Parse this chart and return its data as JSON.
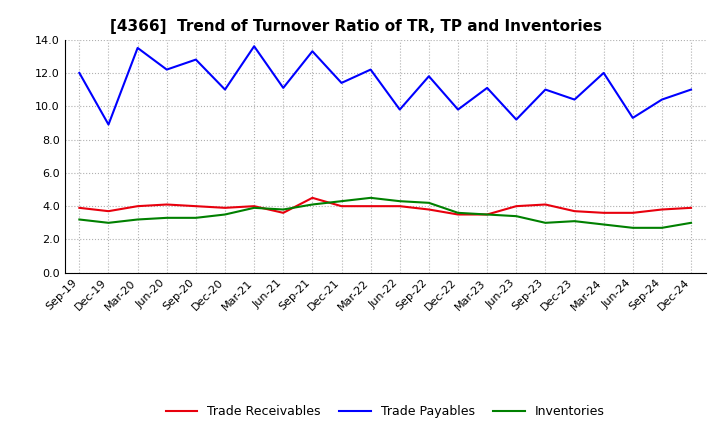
{
  "title": "[4366]  Trend of Turnover Ratio of TR, TP and Inventories",
  "x_labels": [
    "Sep-19",
    "Dec-19",
    "Mar-20",
    "Jun-20",
    "Sep-20",
    "Dec-20",
    "Mar-21",
    "Jun-21",
    "Sep-21",
    "Dec-21",
    "Mar-22",
    "Jun-22",
    "Sep-22",
    "Dec-22",
    "Mar-23",
    "Jun-23",
    "Sep-23",
    "Dec-23",
    "Mar-24",
    "Jun-24",
    "Sep-24",
    "Dec-24"
  ],
  "trade_receivables": [
    3.9,
    3.7,
    4.0,
    4.1,
    4.0,
    3.9,
    4.0,
    3.6,
    4.5,
    4.0,
    4.0,
    4.0,
    3.8,
    3.5,
    3.5,
    4.0,
    4.1,
    3.7,
    3.6,
    3.6,
    3.8,
    3.9
  ],
  "trade_payables": [
    12.0,
    8.9,
    13.5,
    12.2,
    12.8,
    11.0,
    13.6,
    11.1,
    13.3,
    11.4,
    12.2,
    9.8,
    11.8,
    9.8,
    11.1,
    9.2,
    11.0,
    10.4,
    12.0,
    9.3,
    10.4,
    11.0
  ],
  "inventories": [
    3.2,
    3.0,
    3.2,
    3.3,
    3.3,
    3.5,
    3.9,
    3.8,
    4.1,
    4.3,
    4.5,
    4.3,
    4.2,
    3.6,
    3.5,
    3.4,
    3.0,
    3.1,
    2.9,
    2.7,
    2.7,
    3.0
  ],
  "ylim": [
    0.0,
    14.0
  ],
  "yticks": [
    0.0,
    2.0,
    4.0,
    6.0,
    8.0,
    10.0,
    12.0,
    14.0
  ],
  "color_tr": "#e8000d",
  "color_tp": "#0000ff",
  "color_inv": "#008000",
  "bg_color": "#ffffff",
  "grid_color": "#b0b0b0",
  "legend_labels": [
    "Trade Receivables",
    "Trade Payables",
    "Inventories"
  ],
  "title_fontsize": 11,
  "tick_fontsize": 8,
  "legend_fontsize": 9,
  "linewidth": 1.5
}
